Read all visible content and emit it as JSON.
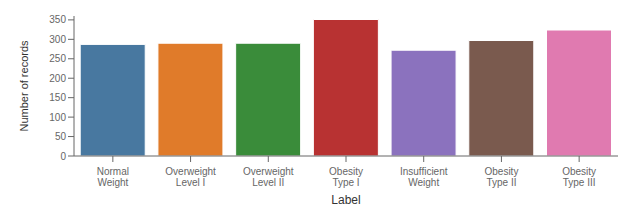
{
  "chart_data": {
    "type": "bar",
    "categories": [
      "Normal Weight",
      "Overweight Level I",
      "Overweight Level II",
      "Obesity Type I",
      "Insufficient Weight",
      "Obesity Type II",
      "Obesity Type III"
    ],
    "values": [
      287,
      290,
      290,
      351,
      272,
      297,
      324
    ],
    "colors": [
      "#4878a0",
      "#e07b2a",
      "#3a8c3a",
      "#b83232",
      "#8b72be",
      "#7a5a4e",
      "#e07ab0"
    ],
    "xlabel": "Label",
    "ylabel": "Number of records",
    "ylim": [
      0,
      360
    ],
    "yticks": [
      0,
      50,
      100,
      150,
      200,
      250,
      300,
      350
    ],
    "grid": false
  }
}
